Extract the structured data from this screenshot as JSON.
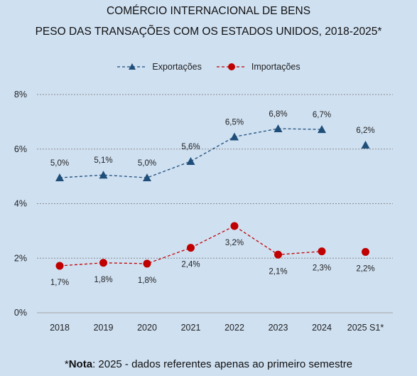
{
  "title_line1": "COMÉRCIO INTERNACIONAL DE BENS",
  "title_line2": "PESO DAS TRANSAÇÕES COM OS ESTADOS UNIDOS, 2018-2025*",
  "note": {
    "prefix": "*",
    "bold": "Nota",
    "text": ": 2025 - dados referentes apenas ao primeiro semestre"
  },
  "colors": {
    "exports": "#1f4e79",
    "imports": "#c00000",
    "grid": "#8c8c8c",
    "background": "#cfe0f1"
  },
  "chart_data": {
    "type": "line",
    "categories": [
      "2018",
      "2019",
      "2020",
      "2021",
      "2022",
      "2023",
      "2024",
      "2025 S1*"
    ],
    "yticks": [
      "0%",
      "2%",
      "4%",
      "6%",
      "8%"
    ],
    "ylim": [
      0,
      8
    ],
    "grid": "horizontal dashed",
    "legend_position": "top-center",
    "series": [
      {
        "name": "Exportações",
        "marker": "triangle",
        "values": [
          4.95,
          5.05,
          4.95,
          5.55,
          6.45,
          6.75,
          6.72,
          6.15
        ],
        "labels": [
          "5,0%",
          "5,1%",
          "5,0%",
          "5,6%",
          "6,5%",
          "6,8%",
          "6,7%",
          "6,2%"
        ],
        "connected_points": 7
      },
      {
        "name": "Importações",
        "marker": "circle",
        "values": [
          1.72,
          1.83,
          1.8,
          2.38,
          3.18,
          2.13,
          2.25,
          2.23
        ],
        "labels": [
          "1,7%",
          "1,8%",
          "1,8%",
          "2,4%",
          "3,2%",
          "2,1%",
          "2,3%",
          "2,2%"
        ],
        "connected_points": 7
      }
    ]
  }
}
